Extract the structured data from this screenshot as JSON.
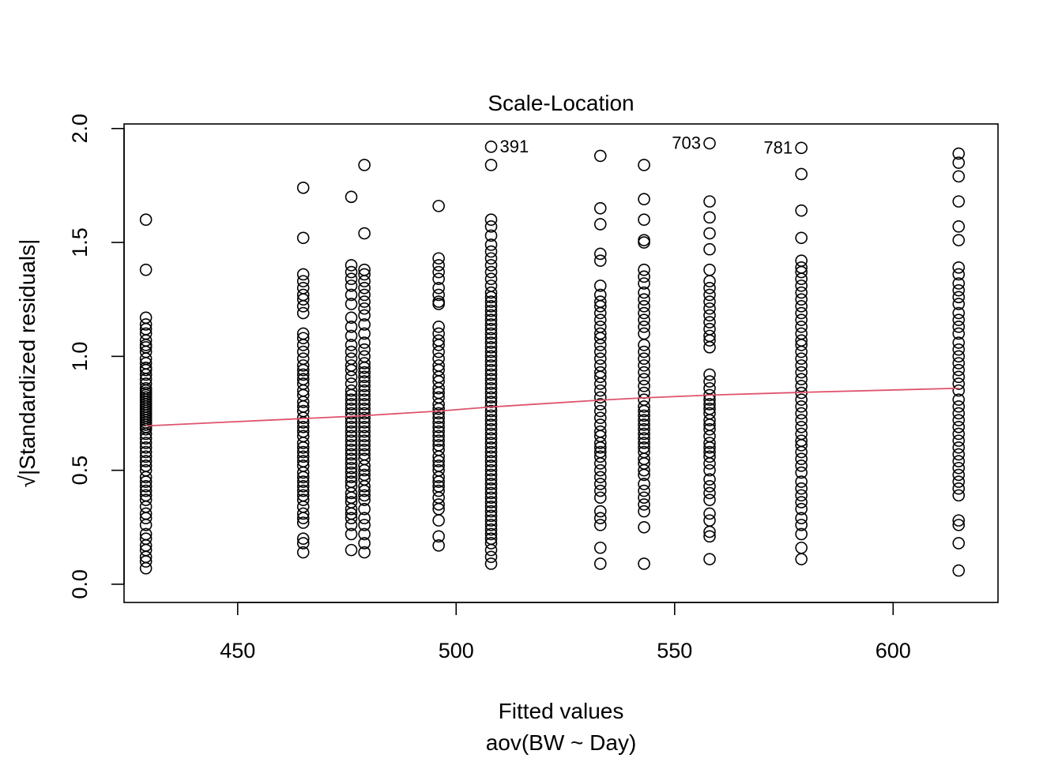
{
  "chart_data": {
    "type": "scatter",
    "title": "Scale-Location",
    "xlabel": "Fitted values",
    "xsublabel": "aov(BW ~ Day)",
    "ylabel": "√|Standardized residuals|",
    "xlim": [
      424,
      624
    ],
    "ylim": [
      -0.08,
      2.02
    ],
    "xticks": [
      450,
      500,
      550,
      600
    ],
    "yticks": [
      0.0,
      0.5,
      1.0,
      1.5,
      2.0
    ],
    "xtick_labels": [
      "450",
      "500",
      "550",
      "600"
    ],
    "ytick_labels": [
      "0.0",
      "0.5",
      "1.0",
      "1.5",
      "2.0"
    ],
    "grid": false,
    "trend_color": "#DF536B",
    "trend_line": {
      "x": [
        429,
        465,
        476,
        479,
        496,
        508,
        533,
        543,
        558,
        579,
        615
      ],
      "y": [
        0.695,
        0.727,
        0.737,
        0.74,
        0.76,
        0.778,
        0.808,
        0.818,
        0.83,
        0.842,
        0.86
      ]
    },
    "annotations": [
      {
        "text": "391",
        "x": 508,
        "y": 1.92,
        "side": "right"
      },
      {
        "text": "703",
        "x": 558,
        "y": 1.935,
        "side": "left"
      },
      {
        "text": "781",
        "x": 579,
        "y": 1.915,
        "side": "left"
      }
    ],
    "groups": [
      {
        "x": 429,
        "y": [
          1.6,
          1.38,
          1.17,
          1.14,
          1.12,
          1.1,
          1.07,
          1.05,
          1.04,
          1.02,
          0.99,
          0.97,
          0.95,
          0.94,
          0.92,
          0.9,
          0.88,
          0.86,
          0.85,
          0.84,
          0.83,
          0.82,
          0.81,
          0.8,
          0.79,
          0.78,
          0.77,
          0.76,
          0.75,
          0.74,
          0.73,
          0.72,
          0.71,
          0.7,
          0.69,
          0.68,
          0.66,
          0.64,
          0.62,
          0.6,
          0.58,
          0.56,
          0.54,
          0.52,
          0.5,
          0.47,
          0.45,
          0.43,
          0.41,
          0.39,
          0.37,
          0.34,
          0.31,
          0.29,
          0.26,
          0.22,
          0.2,
          0.17,
          0.15,
          0.12,
          0.1,
          0.07
        ]
      },
      {
        "x": 465,
        "y": [
          1.74,
          1.52,
          1.36,
          1.33,
          1.3,
          1.27,
          1.25,
          1.22,
          1.19,
          1.1,
          1.08,
          1.05,
          1.02,
          0.99,
          0.96,
          0.94,
          0.92,
          0.9,
          0.88,
          0.85,
          0.83,
          0.8,
          0.78,
          0.76,
          0.73,
          0.71,
          0.69,
          0.67,
          0.65,
          0.62,
          0.6,
          0.58,
          0.56,
          0.54,
          0.52,
          0.49,
          0.47,
          0.45,
          0.43,
          0.41,
          0.39,
          0.37,
          0.34,
          0.31,
          0.29,
          0.27,
          0.2,
          0.18,
          0.14
        ]
      },
      {
        "x": 476,
        "y": [
          1.7,
          1.4,
          1.37,
          1.34,
          1.31,
          1.27,
          1.23,
          1.17,
          1.13,
          1.09,
          1.05,
          1.02,
          0.99,
          0.96,
          0.94,
          0.91,
          0.88,
          0.85,
          0.83,
          0.81,
          0.79,
          0.77,
          0.75,
          0.73,
          0.71,
          0.69,
          0.67,
          0.65,
          0.63,
          0.61,
          0.59,
          0.57,
          0.55,
          0.53,
          0.51,
          0.49,
          0.47,
          0.45,
          0.43,
          0.4,
          0.38,
          0.36,
          0.33,
          0.31,
          0.29,
          0.26,
          0.22,
          0.15
        ]
      },
      {
        "x": 479,
        "y": [
          1.84,
          1.54,
          1.38,
          1.36,
          1.33,
          1.3,
          1.27,
          1.24,
          1.21,
          1.18,
          1.14,
          1.1,
          1.06,
          1.03,
          1.0,
          0.97,
          0.95,
          0.93,
          0.91,
          0.89,
          0.87,
          0.85,
          0.83,
          0.81,
          0.79,
          0.77,
          0.75,
          0.73,
          0.71,
          0.69,
          0.67,
          0.65,
          0.63,
          0.61,
          0.59,
          0.57,
          0.55,
          0.52,
          0.5,
          0.48,
          0.46,
          0.43,
          0.41,
          0.39,
          0.37,
          0.33,
          0.29,
          0.26,
          0.22,
          0.18,
          0.14
        ]
      },
      {
        "x": 496,
        "y": [
          1.66,
          1.43,
          1.4,
          1.37,
          1.34,
          1.3,
          1.27,
          1.24,
          1.23,
          1.13,
          1.1,
          1.07,
          1.05,
          1.02,
          0.99,
          0.96,
          0.94,
          0.91,
          0.89,
          0.86,
          0.84,
          0.82,
          0.79,
          0.77,
          0.75,
          0.73,
          0.71,
          0.69,
          0.67,
          0.65,
          0.63,
          0.61,
          0.59,
          0.56,
          0.54,
          0.52,
          0.5,
          0.47,
          0.45,
          0.43,
          0.41,
          0.38,
          0.35,
          0.33,
          0.28,
          0.21,
          0.17
        ]
      },
      {
        "x": 508,
        "y": [
          1.84,
          1.92,
          1.6,
          1.57,
          1.53,
          1.49,
          1.46,
          1.43,
          1.4,
          1.37,
          1.34,
          1.31,
          1.28,
          1.26,
          1.24,
          1.22,
          1.2,
          1.18,
          1.16,
          1.14,
          1.12,
          1.1,
          1.08,
          1.06,
          1.04,
          1.02,
          1.0,
          0.98,
          0.96,
          0.94,
          0.92,
          0.9,
          0.88,
          0.86,
          0.84,
          0.82,
          0.8,
          0.78,
          0.76,
          0.74,
          0.72,
          0.7,
          0.68,
          0.66,
          0.64,
          0.62,
          0.6,
          0.58,
          0.56,
          0.54,
          0.52,
          0.5,
          0.48,
          0.46,
          0.44,
          0.42,
          0.4,
          0.38,
          0.36,
          0.34,
          0.32,
          0.3,
          0.28,
          0.26,
          0.24,
          0.22,
          0.2,
          0.18,
          0.15,
          0.12,
          0.09
        ]
      },
      {
        "x": 533,
        "y": [
          1.88,
          1.65,
          1.58,
          1.45,
          1.42,
          1.31,
          1.27,
          1.24,
          1.22,
          1.19,
          1.16,
          1.13,
          1.1,
          1.08,
          1.05,
          1.02,
          0.99,
          0.96,
          0.93,
          0.91,
          0.88,
          0.85,
          0.82,
          0.79,
          0.76,
          0.73,
          0.7,
          0.67,
          0.65,
          0.62,
          0.6,
          0.58,
          0.56,
          0.53,
          0.5,
          0.47,
          0.44,
          0.41,
          0.38,
          0.32,
          0.29,
          0.26,
          0.16,
          0.09
        ]
      },
      {
        "x": 543,
        "y": [
          1.84,
          1.69,
          1.6,
          1.51,
          1.5,
          1.38,
          1.35,
          1.32,
          1.28,
          1.25,
          1.22,
          1.19,
          1.16,
          1.13,
          1.1,
          1.05,
          1.02,
          0.99,
          0.96,
          0.93,
          0.9,
          0.87,
          0.84,
          0.81,
          0.78,
          0.76,
          0.74,
          0.72,
          0.7,
          0.68,
          0.66,
          0.64,
          0.62,
          0.6,
          0.58,
          0.55,
          0.53,
          0.5,
          0.48,
          0.44,
          0.41,
          0.38,
          0.35,
          0.32,
          0.25,
          0.09
        ]
      },
      {
        "x": 558,
        "y": [
          1.935,
          1.68,
          1.61,
          1.54,
          1.47,
          1.38,
          1.33,
          1.3,
          1.27,
          1.24,
          1.21,
          1.18,
          1.15,
          1.12,
          1.09,
          1.07,
          1.04,
          0.92,
          0.89,
          0.86,
          0.83,
          0.81,
          0.79,
          0.77,
          0.75,
          0.72,
          0.7,
          0.68,
          0.65,
          0.62,
          0.6,
          0.58,
          0.56,
          0.53,
          0.5,
          0.46,
          0.43,
          0.4,
          0.37,
          0.31,
          0.28,
          0.23,
          0.21,
          0.11
        ]
      },
      {
        "x": 579,
        "y": [
          1.915,
          1.8,
          1.64,
          1.52,
          1.42,
          1.39,
          1.37,
          1.34,
          1.31,
          1.28,
          1.25,
          1.22,
          1.19,
          1.16,
          1.13,
          1.1,
          1.07,
          1.05,
          1.02,
          0.99,
          0.96,
          0.93,
          0.9,
          0.87,
          0.84,
          0.81,
          0.78,
          0.75,
          0.72,
          0.69,
          0.66,
          0.63,
          0.61,
          0.58,
          0.55,
          0.52,
          0.49,
          0.45,
          0.42,
          0.39,
          0.36,
          0.33,
          0.29,
          0.26,
          0.22,
          0.16,
          0.11
        ]
      },
      {
        "x": 615,
        "y": [
          1.89,
          1.85,
          1.79,
          1.68,
          1.57,
          1.51,
          1.39,
          1.36,
          1.32,
          1.29,
          1.26,
          1.23,
          1.19,
          1.16,
          1.13,
          1.1,
          1.06,
          1.03,
          1.0,
          0.97,
          0.94,
          0.91,
          0.88,
          0.85,
          0.81,
          0.78,
          0.75,
          0.72,
          0.69,
          0.66,
          0.63,
          0.6,
          0.57,
          0.54,
          0.51,
          0.48,
          0.45,
          0.42,
          0.39,
          0.28,
          0.26,
          0.18,
          0.06
        ]
      }
    ]
  }
}
